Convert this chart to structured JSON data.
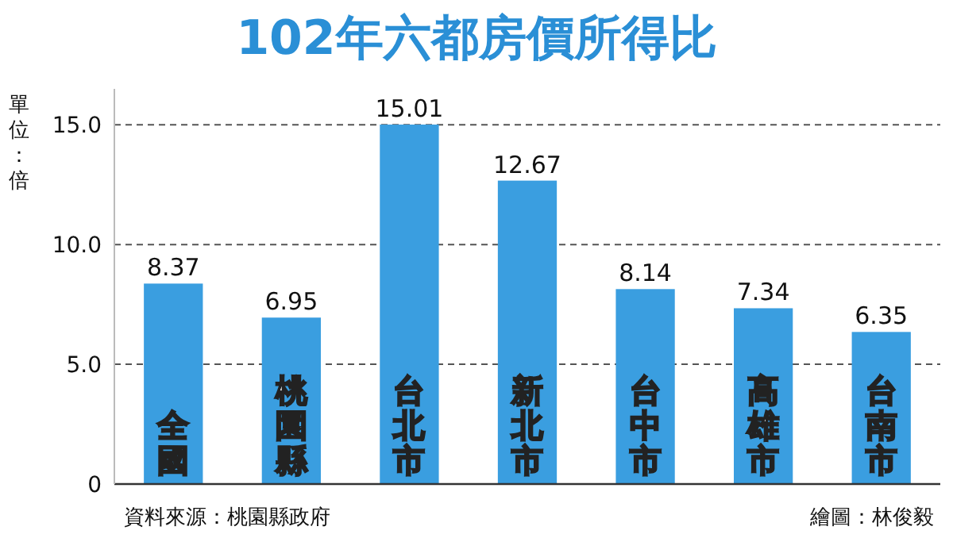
{
  "chart_data": {
    "type": "bar",
    "title": "102年六都房價所得比",
    "ylabel": "單位：倍",
    "categories": [
      "全國",
      "桃園縣",
      "台北市",
      "新北市",
      "台中市",
      "高雄市",
      "台南市"
    ],
    "values": [
      8.37,
      6.95,
      15.01,
      12.67,
      8.14,
      7.34,
      6.35
    ],
    "color": "#3a9ee0",
    "data_labels": true,
    "ylim": [
      0,
      16.5
    ],
    "yticks": [
      {
        "value": 0,
        "label": "0"
      },
      {
        "value": 5,
        "label": "5.0"
      },
      {
        "value": 10,
        "label": "10.0"
      },
      {
        "value": 15,
        "label": "15.0"
      }
    ],
    "grid": "y",
    "annotations": [
      "資料來源：桃園縣政府",
      "繪圖：林俊毅"
    ]
  }
}
